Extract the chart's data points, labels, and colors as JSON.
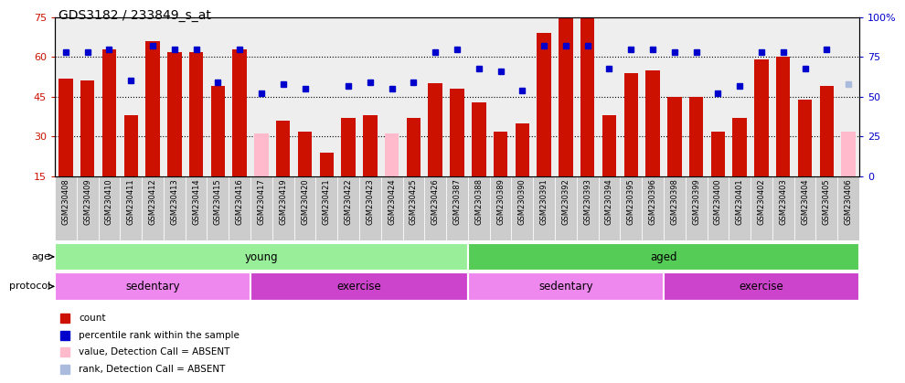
{
  "title": "GDS3182 / 233849_s_at",
  "samples": [
    "GSM230408",
    "GSM230409",
    "GSM230410",
    "GSM230411",
    "GSM230412",
    "GSM230413",
    "GSM230414",
    "GSM230415",
    "GSM230416",
    "GSM230417",
    "GSM230419",
    "GSM230420",
    "GSM230421",
    "GSM230422",
    "GSM230423",
    "GSM230424",
    "GSM230425",
    "GSM230426",
    "GSM230387",
    "GSM230388",
    "GSM230389",
    "GSM230390",
    "GSM230391",
    "GSM230392",
    "GSM230393",
    "GSM230394",
    "GSM230395",
    "GSM230396",
    "GSM230398",
    "GSM230399",
    "GSM230400",
    "GSM230401",
    "GSM230402",
    "GSM230403",
    "GSM230404",
    "GSM230405",
    "GSM230406"
  ],
  "values": [
    52,
    51,
    63,
    38,
    66,
    62,
    62,
    49,
    63,
    31,
    36,
    32,
    24,
    37,
    38,
    31,
    37,
    50,
    48,
    43,
    32,
    35,
    69,
    76,
    79,
    38,
    54,
    55,
    45,
    45,
    32,
    37,
    59,
    60,
    44,
    49,
    32
  ],
  "absent": [
    false,
    false,
    false,
    false,
    false,
    false,
    false,
    false,
    false,
    true,
    false,
    false,
    false,
    false,
    false,
    true,
    false,
    false,
    false,
    false,
    false,
    false,
    false,
    false,
    false,
    false,
    false,
    false,
    false,
    false,
    false,
    false,
    false,
    false,
    false,
    false,
    true
  ],
  "ranks": [
    78,
    78,
    80,
    60,
    82,
    80,
    80,
    59,
    80,
    52,
    58,
    55,
    null,
    57,
    59,
    55,
    59,
    78,
    80,
    68,
    66,
    54,
    82,
    82,
    82,
    68,
    80,
    80,
    78,
    78,
    52,
    57,
    78,
    78,
    68,
    80,
    58
  ],
  "rank_absent": [
    false,
    false,
    false,
    false,
    false,
    false,
    false,
    false,
    false,
    false,
    false,
    false,
    false,
    false,
    false,
    false,
    false,
    false,
    false,
    false,
    false,
    false,
    false,
    false,
    false,
    false,
    false,
    false,
    false,
    false,
    false,
    false,
    false,
    false,
    false,
    false,
    true
  ],
  "ylim_left": [
    15,
    75
  ],
  "ylim_right": [
    0,
    100
  ],
  "yticks_left": [
    15,
    30,
    45,
    60,
    75
  ],
  "yticks_right": [
    0,
    25,
    50,
    75,
    100
  ],
  "bar_color": "#cc1100",
  "bar_absent_color": "#ffbbcc",
  "rank_color": "#0000cc",
  "rank_absent_color": "#aabbdd",
  "age_groups": [
    {
      "label": "young",
      "start": 0,
      "end": 19,
      "color": "#99ee99"
    },
    {
      "label": "aged",
      "start": 19,
      "end": 37,
      "color": "#55cc55"
    }
  ],
  "protocol_groups": [
    {
      "label": "sedentary",
      "start": 0,
      "end": 9,
      "color": "#ee88ee"
    },
    {
      "label": "exercise",
      "start": 9,
      "end": 19,
      "color": "#cc44cc"
    },
    {
      "label": "sedentary",
      "start": 19,
      "end": 28,
      "color": "#ee88ee"
    },
    {
      "label": "exercise",
      "start": 28,
      "end": 37,
      "color": "#cc44cc"
    }
  ],
  "legend_items": [
    {
      "label": "count",
      "color": "#cc1100"
    },
    {
      "label": "percentile rank within the sample",
      "color": "#0000cc"
    },
    {
      "label": "value, Detection Call = ABSENT",
      "color": "#ffbbcc"
    },
    {
      "label": "rank, Detection Call = ABSENT",
      "color": "#aabbdd"
    }
  ],
  "background_color": "#ffffff",
  "tick_label_color_left": "#cc1100",
  "tick_label_color_right": "#0000cc",
  "xtick_bg_color": "#cccccc"
}
